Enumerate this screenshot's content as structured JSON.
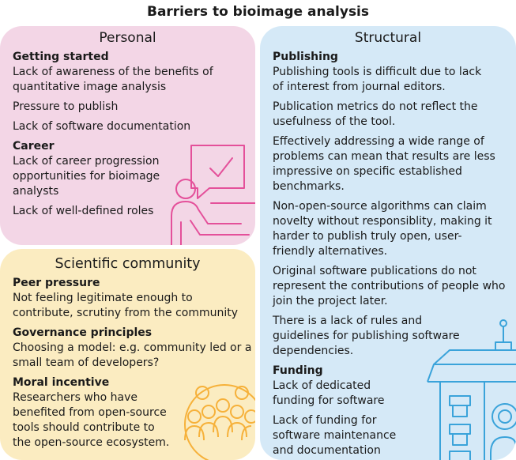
{
  "title": "Barriers to bioimage analysis",
  "colors": {
    "personal": "#f3d6e6",
    "personal_line": "#e4509a",
    "community": "#fbecc1",
    "community_line": "#f6b13a",
    "structural": "#d5e9f7",
    "structural_line": "#3aa3da"
  },
  "personal": {
    "title": "Personal",
    "sections": [
      {
        "heading": "Getting started",
        "items": [
          "Lack of awareness of the benefits of quantitative image analysis",
          "Pressure to publish",
          "Lack of software documentation"
        ]
      },
      {
        "heading": "Career",
        "items": [
          "Lack of career progression opportunities for bioimage analysts",
          "Lack of well-defined roles"
        ]
      }
    ]
  },
  "community": {
    "title": "Scientific community",
    "sections": [
      {
        "heading": "Peer pressure",
        "items": [
          "Not feeling legitimate enough to contribute, scrutiny from the community"
        ]
      },
      {
        "heading": "Governance principles",
        "items": [
          "Choosing a model: e.g. community led or a small team of developers?"
        ]
      },
      {
        "heading": "Moral incentive",
        "items": [
          "Researchers who have benefited from open-source tools should contribute to the open-source ecosystem."
        ]
      }
    ]
  },
  "structural": {
    "title": "Structural",
    "sections": [
      {
        "heading": "Publishing",
        "items": [
          "Publishing tools is difficult due to lack of interest from journal editors.",
          "Publication metrics do not reflect the usefulness of the tool.",
          "Effectively addressing a wide range of problems can mean that results are less impressive on specific established benchmarks.",
          "Non-open-source algorithms can claim novelty without responsiblity, making it harder to publish truly open, user-friendly alternatives.",
          "Original software publications do not represent the contributions of people who join the project later.",
          "There is a lack of rules and guidelines for publishing software dependencies."
        ]
      },
      {
        "heading": "Funding",
        "items": [
          "Lack of dedicated funding for software",
          "Lack of funding for software maintenance and documentation"
        ]
      }
    ]
  }
}
